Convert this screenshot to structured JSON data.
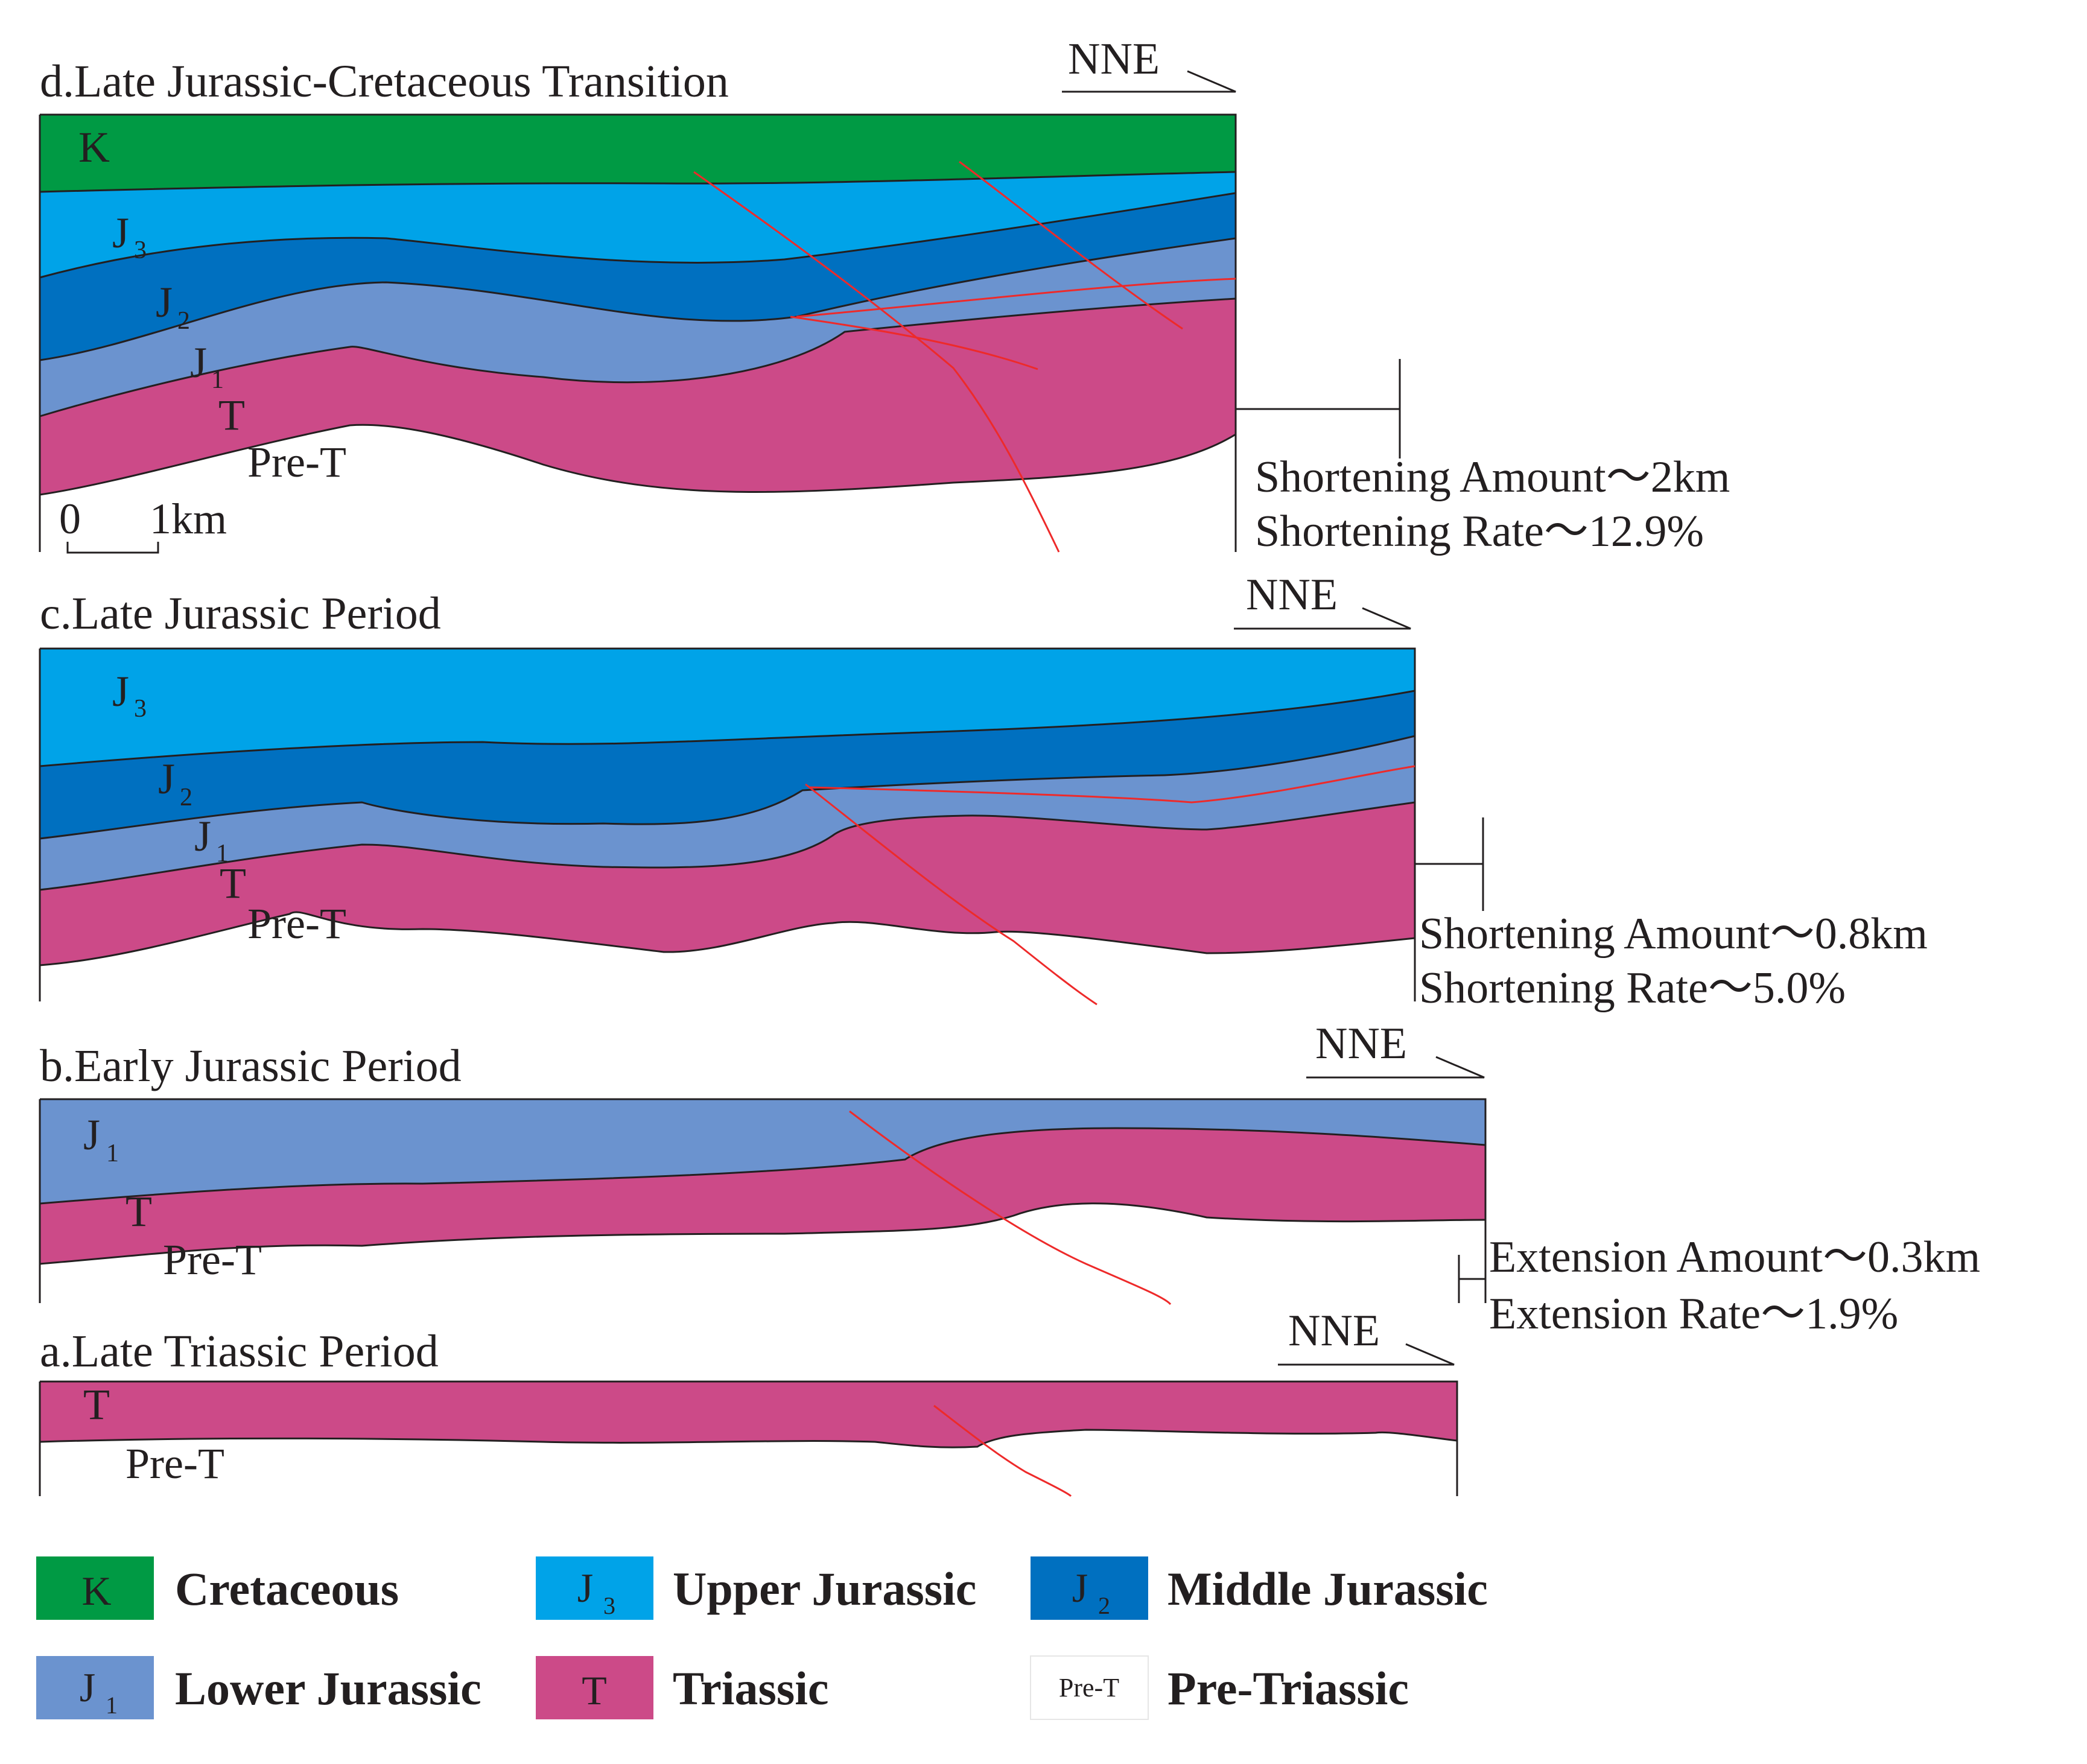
{
  "panels": {
    "d": {
      "title": "d.Late Jurassic-Cretaceous Transition",
      "direction": "NNE",
      "labels": {
        "K": "K",
        "J3": "J",
        "J3_sub": "3",
        "J2": "J",
        "J2_sub": "2",
        "J1": "J",
        "J1_sub": "1",
        "T": "T",
        "PreT": "Pre-T"
      },
      "scale": {
        "zero": "0",
        "one": "1km"
      },
      "shortening_amount": "Shortening Amount～2km",
      "shortening_rate": "Shortening Rate～12.9%"
    },
    "c": {
      "title": "c.Late Jurassic Period",
      "direction": "NNE",
      "labels": {
        "J3": "J",
        "J3_sub": "3",
        "J2": "J",
        "J2_sub": "2",
        "J1": "J",
        "J1_sub": "1",
        "T": "T",
        "PreT": "Pre-T"
      },
      "shortening_amount": "Shortening Amount～0.8km",
      "shortening_rate": "Shortening Rate～5.0%"
    },
    "b": {
      "title": "b.Early Jurassic Period",
      "direction": "NNE",
      "labels": {
        "J1": "J",
        "J1_sub": "1",
        "T": "T",
        "PreT": "Pre-T"
      },
      "extension_amount": "Extension Amount～0.3km",
      "extension_rate": "Extension Rate～1.9%"
    },
    "a": {
      "title": "a.Late Triassic Period",
      "direction": "NNE",
      "labels": {
        "T": "T",
        "PreT": "Pre-T"
      }
    }
  },
  "legend": [
    {
      "symbol": "K",
      "sub": "",
      "name": "Cretaceous",
      "color": "#009a44"
    },
    {
      "symbol": "J",
      "sub": "3",
      "name": "Upper Jurassic",
      "color": "#00a3e8"
    },
    {
      "symbol": "J",
      "sub": "2",
      "name": "Middle Jurassic",
      "color": "#0070c0"
    },
    {
      "symbol": "J",
      "sub": "1",
      "name": "Lower Jurassic",
      "color": "#6b93cf"
    },
    {
      "symbol": "T",
      "sub": "",
      "name": "Triassic",
      "color": "#cc4a88"
    },
    {
      "symbol": "Pre-T",
      "sub": "",
      "name": "Pre-Triassic",
      "color": "#ffffff"
    }
  ],
  "colors": {
    "cretaceous": "#009a44",
    "upper_jurassic": "#00a3e8",
    "middle_jurassic": "#0070c0",
    "lower_jurassic": "#6b93cf",
    "triassic": "#cc4a88",
    "fault": "#ee2a2a"
  }
}
